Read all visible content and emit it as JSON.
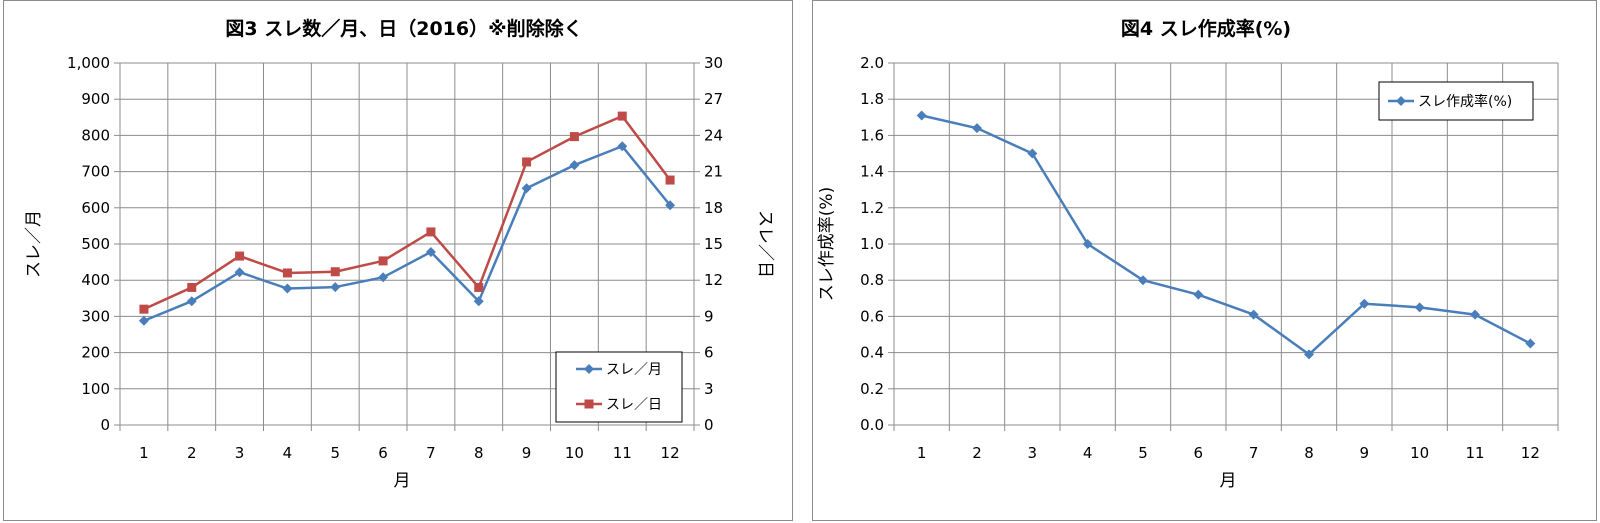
{
  "chart_data": [
    {
      "type": "line",
      "title": "図3 スレ数／月、日（2016）※削除除く",
      "xlabel": "月",
      "ylabel": "スレ／月",
      "y2label": "スレ／日",
      "categories": [
        "1",
        "2",
        "3",
        "4",
        "5",
        "6",
        "7",
        "8",
        "9",
        "10",
        "11",
        "12"
      ],
      "ylim": [
        0,
        1000
      ],
      "yticks": [
        "0",
        "100",
        "200",
        "300",
        "400",
        "500",
        "600",
        "700",
        "800",
        "900",
        "1,000"
      ],
      "y2lim": [
        0,
        30
      ],
      "y2ticks": [
        "0",
        "3",
        "6",
        "9",
        "12",
        "15",
        "18",
        "21",
        "24",
        "27",
        "30"
      ],
      "grid": true,
      "legend_position": "bottom-right",
      "series": [
        {
          "name": "スレ／月",
          "axis": "left",
          "color": "#4a7ebb",
          "marker": "diamond",
          "values": [
            288,
            342,
            422,
            377,
            381,
            408,
            478,
            342,
            654,
            718,
            770,
            607
          ]
        },
        {
          "name": "スレ／日",
          "axis": "right",
          "color": "#be4b48",
          "marker": "square",
          "values": [
            9.6,
            11.4,
            14.0,
            12.6,
            12.7,
            13.6,
            16.0,
            11.4,
            21.8,
            23.9,
            25.6,
            20.3
          ]
        }
      ]
    },
    {
      "type": "line",
      "title": "図4 スレ作成率(%)",
      "xlabel": "月",
      "ylabel": "スレ作成率(%)",
      "categories": [
        "1",
        "2",
        "3",
        "4",
        "5",
        "6",
        "7",
        "8",
        "9",
        "10",
        "11",
        "12"
      ],
      "ylim": [
        0,
        2.0
      ],
      "yticks": [
        "0.0",
        "0.2",
        "0.4",
        "0.6",
        "0.8",
        "1.0",
        "1.2",
        "1.4",
        "1.6",
        "1.8",
        "2.0"
      ],
      "grid": true,
      "legend_position": "top-right",
      "series": [
        {
          "name": "スレ作成率(%)",
          "axis": "left",
          "color": "#4a7ebb",
          "marker": "diamond",
          "values": [
            1.71,
            1.64,
            1.5,
            1.0,
            0.8,
            0.72,
            0.61,
            0.39,
            0.67,
            0.65,
            0.61,
            0.45
          ]
        }
      ]
    }
  ]
}
